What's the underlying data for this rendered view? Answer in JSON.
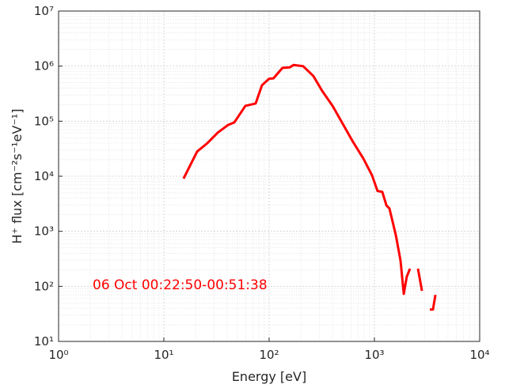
{
  "chart_data": {
    "type": "line",
    "xlabel": "Energy [eV]",
    "ylabel": "H⁺ flux [cm⁻²s⁻¹eV⁻¹]",
    "annotation": "06 Oct 00:22:50-00:51:38",
    "log_x": true,
    "log_y": true,
    "grid": true,
    "minor_grid": true,
    "xlim": [
      1,
      10000
    ],
    "ylim": [
      10,
      10000000
    ],
    "xticks": [
      {
        "value": 1,
        "label": "10⁰"
      },
      {
        "value": 10,
        "label": "10¹"
      },
      {
        "value": 100,
        "label": "10²"
      },
      {
        "value": 1000,
        "label": "10³"
      },
      {
        "value": 10000,
        "label": "10⁴"
      }
    ],
    "yticks": [
      {
        "value": 10,
        "label": "10¹"
      },
      {
        "value": 100,
        "label": "10²"
      },
      {
        "value": 1000,
        "label": "10³"
      },
      {
        "value": 10000,
        "label": "10⁴"
      },
      {
        "value": 100000,
        "label": "10⁵"
      },
      {
        "value": 1000000,
        "label": "10⁶"
      },
      {
        "value": 10000000,
        "label": "10⁷"
      }
    ],
    "x": [
      15.4,
      20.7,
      25.9,
      32.5,
      40.6,
      46.7,
      59.5,
      74.5,
      85.5,
      100,
      110,
      134,
      157,
      171,
      210,
      263,
      319,
      400,
      492,
      627,
      785,
      949,
      1070,
      1190,
      1300,
      1390,
      1600,
      1770,
      1900,
      2030,
      2180,
      null,
      2590,
      2830,
      null,
      3360,
      3600,
      3800
    ],
    "series": [
      {
        "color": "#ff0000",
        "values": [
          9100,
          28000,
          40000,
          62000,
          85000,
          95000,
          190000,
          210000,
          450000,
          590000,
          600000,
          930000,
          950000,
          1050000,
          1000000,
          660000,
          355000,
          190000,
          95000,
          42000,
          21000,
          10400,
          5400,
          5200,
          2950,
          2600,
          850,
          295,
          73,
          150,
          210,
          null,
          210,
          83,
          null,
          38,
          38,
          70
        ]
      }
    ]
  }
}
